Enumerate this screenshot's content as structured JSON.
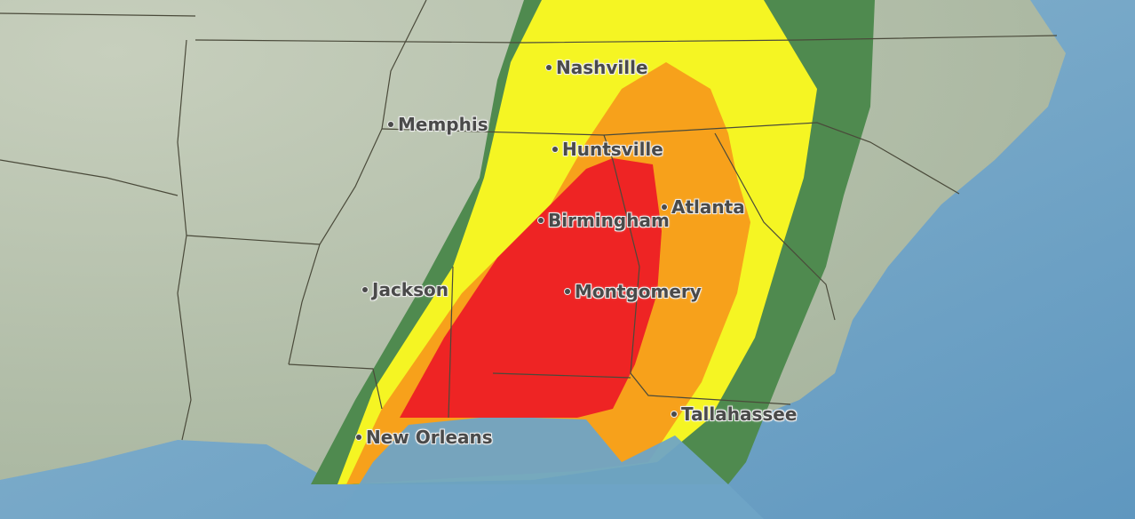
{
  "map": {
    "risk_colors": {
      "marginal": "#4f8a4f",
      "slight": "#f5f523",
      "enhanced": "#f7a11b",
      "moderate": "#ee2424"
    },
    "cities": [
      {
        "name": "Nashville"
      },
      {
        "name": "Memphis"
      },
      {
        "name": "Huntsville"
      },
      {
        "name": "Atlanta"
      },
      {
        "name": "Birmingham"
      },
      {
        "name": "Jackson"
      },
      {
        "name": "Montgomery"
      },
      {
        "name": "Tallahassee"
      },
      {
        "name": "New Orleans"
      }
    ]
  }
}
